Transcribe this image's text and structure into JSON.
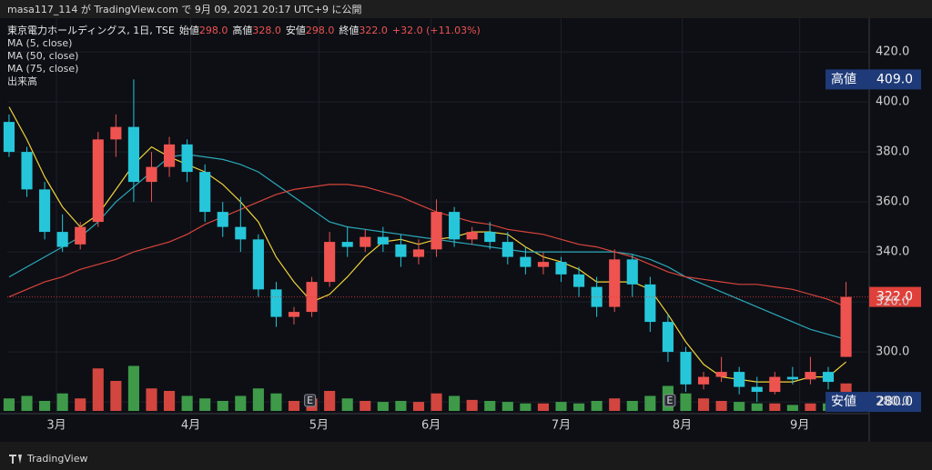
{
  "chart_data": {
    "type": "candlestick",
    "published": "masa117_114 が TradingView.com で 9月 09, 2021 20:17 UTC+9 に公開",
    "title": "東京電力ホールディングス, 1日, TSE",
    "ohlc_header": [
      {
        "label": "始値",
        "value": "298.0"
      },
      {
        "label": "高値",
        "value": "328.0"
      },
      {
        "label": "安値",
        "value": "298.0"
      },
      {
        "label": "終値",
        "value": "322.0"
      }
    ],
    "change": "+32.0 (+11.03%)",
    "volume_name": "出来高",
    "brand": "TradingView",
    "up_color": "#ef5350",
    "down_color": "#26c6da",
    "volume_up_color": "#d2463f",
    "volume_down_color": "#3e9a48",
    "grid": true,
    "ylim": [
      275.3,
      433.5
    ],
    "yticks": [
      {
        "value": 280,
        "label": "280.0"
      },
      {
        "value": 300,
        "label": "300.0"
      },
      {
        "value": 320,
        "label": "320.0"
      },
      {
        "value": 340,
        "label": "340.0"
      },
      {
        "value": 360,
        "label": "360.0"
      },
      {
        "value": 380,
        "label": "380.0"
      },
      {
        "value": 400,
        "label": "400.0"
      },
      {
        "value": 420,
        "label": "420.0"
      }
    ],
    "xlim": [
      -0.1,
      48.3
    ],
    "xticks": [
      {
        "value": 2.66,
        "label": "3月"
      },
      {
        "value": 10.2,
        "label": "4月"
      },
      {
        "value": 17.4,
        "label": "5月"
      },
      {
        "value": 23.7,
        "label": "6月"
      },
      {
        "value": 31.0,
        "label": "7月"
      },
      {
        "value": 37.8,
        "label": "8月"
      },
      {
        "value": 44.4,
        "label": "9月"
      }
    ],
    "volume_lim": [
      0,
      100
    ],
    "candles": {
      "open": [
        392,
        380,
        365,
        348,
        343,
        352,
        385,
        390,
        368,
        374,
        383,
        372,
        356,
        350,
        345,
        325,
        314,
        316,
        328,
        344,
        342,
        346,
        343,
        338,
        341,
        356,
        345,
        348,
        344,
        338,
        334,
        336,
        331,
        326,
        318,
        337,
        327,
        312,
        300,
        287,
        290,
        292,
        286,
        284,
        290,
        289,
        292,
        298
      ],
      "high": [
        395,
        382,
        368,
        355,
        352,
        388,
        395,
        409,
        380,
        386,
        385,
        375,
        360,
        362,
        347,
        328,
        318,
        330,
        348,
        350,
        349,
        350,
        347,
        345,
        361,
        358,
        350,
        352,
        348,
        342,
        340,
        338,
        334,
        330,
        341,
        339,
        330,
        315,
        302,
        292,
        298,
        294,
        290,
        292,
        294,
        298,
        294,
        328
      ],
      "low": [
        378,
        362,
        345,
        340,
        341,
        350,
        378,
        360,
        360,
        370,
        368,
        352,
        346,
        340,
        322,
        310,
        311,
        314,
        326,
        338,
        340,
        340,
        334,
        335,
        338,
        342,
        343,
        341,
        335,
        331,
        331,
        328,
        322,
        314,
        316,
        322,
        308,
        296,
        284,
        285,
        288,
        283,
        280,
        283,
        287,
        287,
        285,
        298
      ],
      "close": [
        380,
        365,
        348,
        342,
        350,
        385,
        390,
        368,
        374,
        383,
        372,
        356,
        350,
        345,
        325,
        314,
        316,
        328,
        344,
        342,
        346,
        343,
        338,
        341,
        356,
        345,
        348,
        344,
        338,
        334,
        336,
        331,
        326,
        318,
        337,
        327,
        312,
        300,
        287,
        290,
        292,
        286,
        284,
        290,
        289,
        292,
        288,
        322
      ],
      "volume": [
        25,
        30,
        20,
        35,
        25,
        85,
        60,
        90,
        45,
        40,
        30,
        25,
        20,
        30,
        45,
        35,
        20,
        25,
        40,
        25,
        20,
        18,
        20,
        18,
        35,
        30,
        22,
        20,
        18,
        15,
        15,
        18,
        15,
        20,
        25,
        20,
        30,
        50,
        35,
        25,
        20,
        18,
        15,
        15,
        12,
        15,
        15,
        55
      ]
    },
    "series": [
      {
        "name": "MA (5, close)",
        "color": "#f2d23a",
        "values": [
          398,
          385,
          370,
          358,
          350,
          355,
          365,
          375,
          382,
          378,
          375,
          372,
          367,
          360,
          352,
          338,
          328,
          320,
          323,
          330,
          338,
          344,
          345,
          343,
          345,
          346,
          348,
          348,
          347,
          342,
          338,
          336,
          333,
          328,
          328,
          328,
          325,
          315,
          304,
          295,
          290,
          289,
          288,
          288,
          288,
          290,
          290,
          296
        ]
      },
      {
        "name": "MA (50, close)",
        "color": "#2ba9b8",
        "values": [
          330,
          334,
          338,
          342,
          346,
          352,
          360,
          366,
          372,
          378,
          379,
          378,
          377,
          375,
          372,
          367,
          362,
          357,
          352,
          350,
          349,
          348,
          347,
          346,
          345,
          344,
          343,
          342,
          341,
          340,
          340,
          340,
          340,
          340,
          340,
          339,
          337,
          334,
          330,
          327,
          324,
          321,
          318,
          315,
          312,
          309,
          307,
          305
        ]
      },
      {
        "name": "MA (75, close)",
        "color": "#d9443b",
        "values": [
          322,
          325,
          328,
          330,
          333,
          335,
          337,
          340,
          342,
          344,
          347,
          351,
          354,
          357,
          360,
          363,
          365,
          366,
          367,
          367,
          366,
          364,
          362,
          359,
          356,
          354,
          352,
          351,
          349,
          348,
          347,
          345,
          343,
          342,
          340,
          338,
          335,
          332,
          330,
          329,
          328,
          327,
          327,
          326,
          325,
          323,
          321,
          318
        ]
      }
    ],
    "events": [
      {
        "x": 16.9,
        "label": "E"
      },
      {
        "x": 37.1,
        "label": "E"
      }
    ],
    "price_markers": [
      {
        "label": "高値",
        "value": 409,
        "value_label": "409.0",
        "color": "#1e3a78"
      },
      {
        "value": 322,
        "value_label": "322.0",
        "color": "#e0403a"
      },
      {
        "label": "安値",
        "value": 280,
        "value_label": "280.0",
        "color": "#1e3a78"
      }
    ]
  }
}
